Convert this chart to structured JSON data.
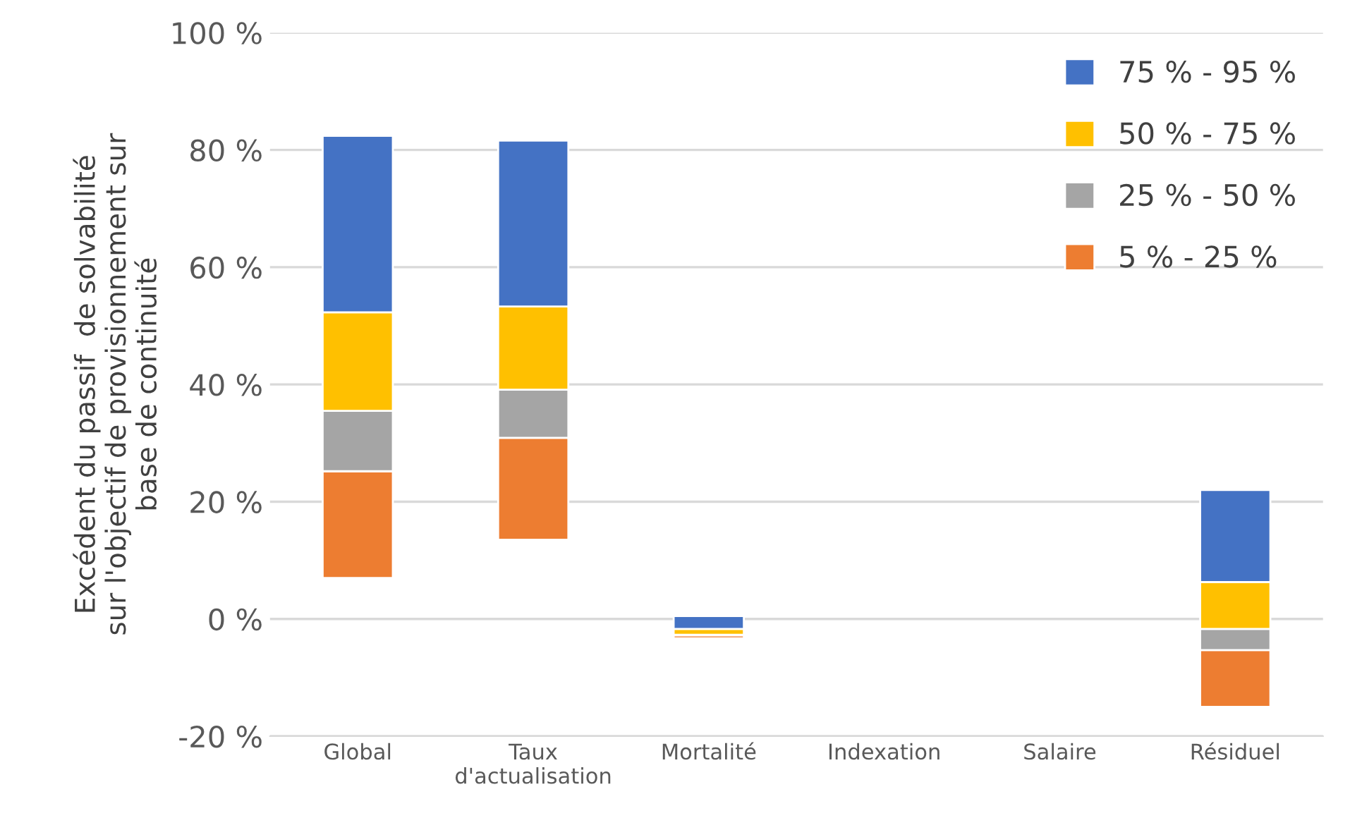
{
  "chart_data": {
    "type": "bar",
    "ylabel": "Excédent du passif  de solvabilité\nsur l'objectif de provisionnement sur\nbase de continuité",
    "categories": [
      "Global",
      "Taux\nd'actualisation",
      "Mortalité",
      "Indexation",
      "Salaire",
      "Résiduel"
    ],
    "series": [
      {
        "name": "5 % - 25 %",
        "color": "#ed7d31",
        "base": [
          7,
          13.5,
          -3.3,
          null,
          null,
          -15
        ],
        "values": [
          18.2,
          17.4,
          0.5,
          null,
          null,
          9.7
        ]
      },
      {
        "name": "25 % - 50 %",
        "color": "#a5a5a5",
        "base": [
          25.2,
          30.9,
          null,
          null,
          null,
          -5.3
        ],
        "values": [
          10.3,
          8.2,
          null,
          null,
          null,
          3.6
        ]
      },
      {
        "name": "50 % - 75 %",
        "color": "#ffc000",
        "base": [
          35.5,
          39.1,
          -2.7,
          null,
          null,
          -1.7
        ],
        "values": [
          16.8,
          14.2,
          1.0,
          null,
          null,
          8.0
        ]
      },
      {
        "name": "75 % - 95 %",
        "color": "#4472c4",
        "base": [
          52.3,
          53.3,
          -1.7,
          null,
          null,
          6.3
        ],
        "values": [
          30.1,
          28.3,
          2.2,
          null,
          null,
          15.7
        ]
      }
    ],
    "ylim": [
      -20,
      100
    ],
    "yticks": [
      {
        "value": -20,
        "label": "-20 %"
      },
      {
        "value": 0,
        "label": "0 %"
      },
      {
        "value": 20,
        "label": "20 %"
      },
      {
        "value": 40,
        "label": "40 %"
      },
      {
        "value": 60,
        "label": "60 %"
      },
      {
        "value": 80,
        "label": "80 %"
      },
      {
        "value": 100,
        "label": "100 %"
      }
    ],
    "grid": "y",
    "legend": "top right"
  }
}
